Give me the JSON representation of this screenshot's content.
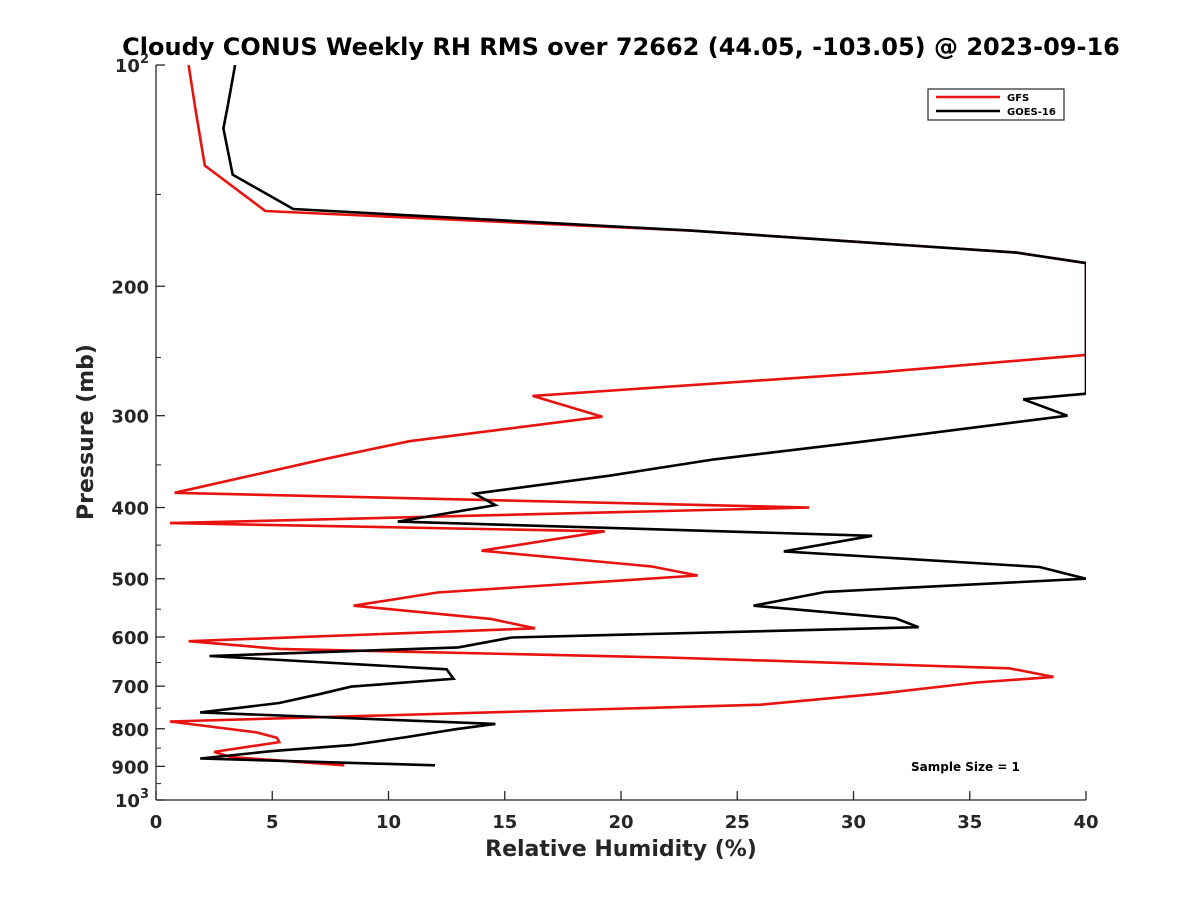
{
  "chart_data": {
    "type": "line",
    "title": "Cloudy CONUS Weekly RH RMS over 72662 (44.05, -103.05) @ 2023-09-16",
    "xlabel": "Relative Humidity (%)",
    "ylabel": "Pressure (mb)",
    "xlim": [
      0,
      40
    ],
    "ylim": [
      100,
      1000
    ],
    "y_scale": "log",
    "y_reversed": true,
    "grid": false,
    "legend_position": "top-right",
    "x_ticks": [
      "0",
      "5",
      "10",
      "15",
      "20",
      "25",
      "30",
      "35",
      "40"
    ],
    "y_ticks": [
      {
        "value": 100,
        "base": "10",
        "exp": "2",
        "label": ""
      },
      {
        "value": 200,
        "base": "",
        "exp": "",
        "label": "200"
      },
      {
        "value": 300,
        "base": "",
        "exp": "",
        "label": "300"
      },
      {
        "value": 400,
        "base": "",
        "exp": "",
        "label": "400"
      },
      {
        "value": 500,
        "base": "",
        "exp": "",
        "label": "500"
      },
      {
        "value": 600,
        "base": "",
        "exp": "",
        "label": "600"
      },
      {
        "value": 700,
        "base": "",
        "exp": "",
        "label": "700"
      },
      {
        "value": 800,
        "base": "",
        "exp": "",
        "label": "800"
      },
      {
        "value": 900,
        "base": "",
        "exp": "",
        "label": "900"
      },
      {
        "value": 1000,
        "base": "10",
        "exp": "3",
        "label": ""
      }
    ],
    "series": [
      {
        "name": "GFS",
        "color": "#e8130f",
        "points": [
          [
            1.4,
            100
          ],
          [
            1.7,
            115
          ],
          [
            2.1,
            137
          ],
          [
            4.7,
            158
          ],
          [
            23,
            168
          ],
          [
            37,
            180
          ],
          [
            40,
            186
          ],
          [
            40,
            248
          ],
          [
            31,
            262
          ],
          [
            16.2,
            282
          ],
          [
            19.2,
            301
          ],
          [
            10.9,
            325
          ],
          [
            7,
            345
          ],
          [
            0.8,
            382
          ],
          [
            28.1,
            400
          ],
          [
            0.6,
            420
          ],
          [
            19.3,
            431
          ],
          [
            14.0,
            458
          ],
          [
            21.3,
            481
          ],
          [
            23.3,
            495
          ],
          [
            12.1,
            522
          ],
          [
            8.5,
            544
          ],
          [
            14.4,
            567
          ],
          [
            16.3,
            584
          ],
          [
            1.4,
            608
          ],
          [
            5.3,
            623
          ],
          [
            22,
            640
          ],
          [
            36.7,
            662
          ],
          [
            38.6,
            680
          ],
          [
            35.3,
            692
          ],
          [
            31.2,
            716
          ],
          [
            26,
            742
          ],
          [
            0.6,
            782
          ],
          [
            4.3,
            809
          ],
          [
            5.2,
            823
          ],
          [
            5.3,
            834
          ],
          [
            2.5,
            860
          ],
          [
            3.2,
            874
          ],
          [
            8.1,
            897
          ]
        ]
      },
      {
        "name": "GOES-16",
        "color": "#000000",
        "points": [
          [
            3.4,
            100
          ],
          [
            3.1,
            113
          ],
          [
            2.9,
            122
          ],
          [
            3.3,
            141
          ],
          [
            5.9,
            157
          ],
          [
            23,
            168
          ],
          [
            37,
            180
          ],
          [
            40,
            186
          ],
          [
            40,
            280
          ],
          [
            37.3,
            285
          ],
          [
            39.2,
            300
          ],
          [
            30.2,
            326
          ],
          [
            24,
            344
          ],
          [
            19.5,
            362
          ],
          [
            13.7,
            383
          ],
          [
            14.6,
            397
          ],
          [
            10.4,
            418
          ],
          [
            30.8,
            437
          ],
          [
            27.0,
            459
          ],
          [
            38,
            482
          ],
          [
            40,
            500
          ],
          [
            28.8,
            521
          ],
          [
            25.7,
            544
          ],
          [
            31.8,
            566
          ],
          [
            32.8,
            582
          ],
          [
            15.3,
            601
          ],
          [
            13,
            620
          ],
          [
            2.3,
            637
          ],
          [
            12.5,
            664
          ],
          [
            12.8,
            684
          ],
          [
            8.4,
            701
          ],
          [
            7,
            718
          ],
          [
            5.3,
            738
          ],
          [
            1.9,
            760
          ],
          [
            14.6,
            788
          ],
          [
            12.9,
            801
          ],
          [
            10.8,
            821
          ],
          [
            8.4,
            842
          ],
          [
            5,
            858
          ],
          [
            1.9,
            878
          ],
          [
            12,
            897
          ]
        ]
      }
    ],
    "annotations": [
      "Sample Size = 1"
    ]
  }
}
